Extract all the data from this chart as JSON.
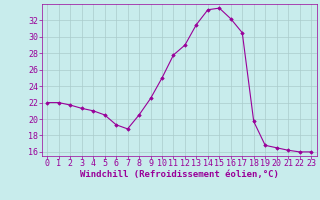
{
  "x": [
    0,
    1,
    2,
    3,
    4,
    5,
    6,
    7,
    8,
    9,
    10,
    11,
    12,
    13,
    14,
    15,
    16,
    17,
    18,
    19,
    20,
    21,
    22,
    23
  ],
  "y": [
    22.0,
    22.0,
    21.7,
    21.3,
    21.0,
    20.5,
    19.3,
    18.8,
    20.5,
    22.5,
    25.0,
    27.8,
    29.0,
    31.5,
    33.3,
    33.5,
    32.2,
    30.5,
    19.7,
    16.8,
    16.5,
    16.2,
    16.0,
    16.0
  ],
  "line_color": "#990099",
  "marker": "D",
  "marker_size": 1.8,
  "bg_color": "#c8ecec",
  "grid_color": "#aacccc",
  "tick_color": "#990099",
  "label_color": "#990099",
  "xlabel": "Windchill (Refroidissement éolien,°C)",
  "ylabel": "",
  "title": "",
  "xlim": [
    -0.5,
    23.5
  ],
  "ylim": [
    15.5,
    34.0
  ],
  "yticks": [
    16,
    18,
    20,
    22,
    24,
    26,
    28,
    30,
    32
  ],
  "xticks": [
    0,
    1,
    2,
    3,
    4,
    5,
    6,
    7,
    8,
    9,
    10,
    11,
    12,
    13,
    14,
    15,
    16,
    17,
    18,
    19,
    20,
    21,
    22,
    23
  ],
  "xlabel_fontsize": 6.5,
  "tick_fontsize": 6.0,
  "linewidth": 0.8
}
